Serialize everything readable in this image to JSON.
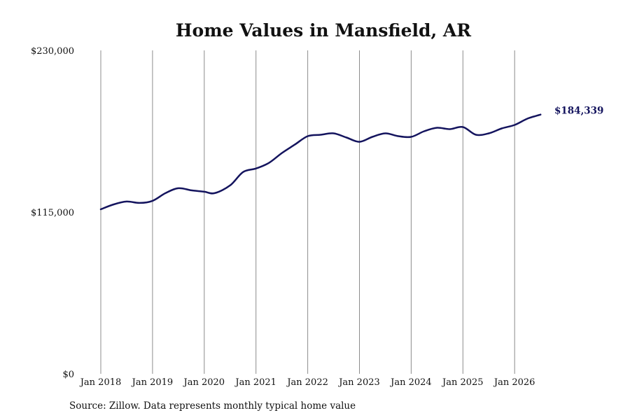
{
  "chart_data": {
    "type": "line",
    "title": "Home Values in Mansfield, AR",
    "source": "Source: Zillow. Data represents monthly typical home value",
    "ylim": [
      0,
      230000
    ],
    "y_ticks": [
      {
        "value": 0,
        "label": "$0"
      },
      {
        "value": 115000,
        "label": "$115,000"
      },
      {
        "value": 230000,
        "label": "$230,000"
      }
    ],
    "x_ticks": [
      {
        "value": 2018,
        "label": "Jan 2018"
      },
      {
        "value": 2019,
        "label": "Jan 2019"
      },
      {
        "value": 2020,
        "label": "Jan 2020"
      },
      {
        "value": 2021,
        "label": "Jan 2021"
      },
      {
        "value": 2022,
        "label": "Jan 2022"
      },
      {
        "value": 2023,
        "label": "Jan 2023"
      },
      {
        "value": 2024,
        "label": "Jan 2024"
      },
      {
        "value": 2025,
        "label": "Jan 2025"
      },
      {
        "value": 2026,
        "label": "Jan 2026"
      }
    ],
    "xlim": [
      2018,
      2026.6
    ],
    "grid": "vertical",
    "line_color": "#14145e",
    "end_label": "$184,339",
    "series": [
      {
        "values": [
          [
            2018.0,
            117000
          ],
          [
            2018.25,
            120500
          ],
          [
            2018.5,
            122500
          ],
          [
            2018.75,
            121500
          ],
          [
            2019.0,
            123000
          ],
          [
            2019.25,
            128500
          ],
          [
            2019.5,
            132000
          ],
          [
            2019.75,
            130500
          ],
          [
            2020.0,
            129500
          ],
          [
            2020.2,
            128500
          ],
          [
            2020.5,
            134000
          ],
          [
            2020.75,
            143500
          ],
          [
            2021.0,
            146000
          ],
          [
            2021.25,
            150000
          ],
          [
            2021.5,
            157000
          ],
          [
            2021.75,
            163000
          ],
          [
            2022.0,
            169000
          ],
          [
            2022.25,
            170000
          ],
          [
            2022.5,
            171000
          ],
          [
            2022.75,
            168000
          ],
          [
            2023.0,
            165000
          ],
          [
            2023.25,
            168500
          ],
          [
            2023.5,
            171000
          ],
          [
            2023.75,
            169000
          ],
          [
            2024.0,
            168500
          ],
          [
            2024.25,
            172500
          ],
          [
            2024.5,
            175000
          ],
          [
            2024.75,
            174000
          ],
          [
            2025.0,
            175500
          ],
          [
            2025.25,
            170000
          ],
          [
            2025.5,
            171000
          ],
          [
            2025.75,
            174500
          ],
          [
            2026.0,
            177000
          ],
          [
            2026.25,
            181500
          ],
          [
            2026.5,
            184339
          ]
        ]
      }
    ]
  }
}
